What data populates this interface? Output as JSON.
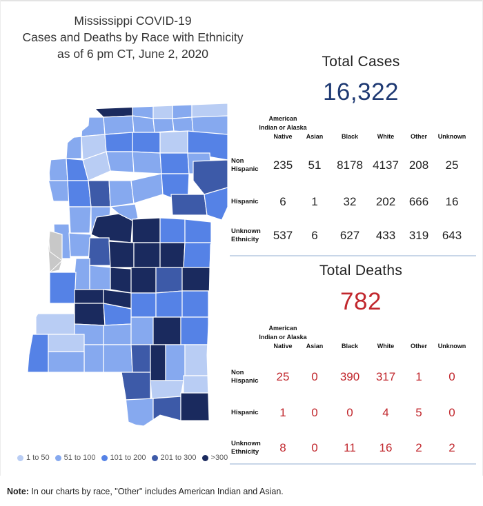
{
  "title_lines": [
    "Mississippi COVID-19",
    "Cases and Deaths by Race with Ethnicity",
    "as of 6 pm CT, June 2, 2020"
  ],
  "colors": {
    "1_50": "#b9cdf4",
    "51_100": "#86a9ef",
    "101_200": "#5582e6",
    "201_300": "#3d5aa8",
    "over_300": "#1a2a5e",
    "no_data": "#c8c8c8",
    "cases_number": "#1f3a73",
    "deaths_number": "#c1272d"
  },
  "legend": [
    {
      "label": "1 to 50",
      "color": "#b9cdf4"
    },
    {
      "label": "51 to 100",
      "color": "#86a9ef"
    },
    {
      "label": "101 to 200",
      "color": "#5582e6"
    },
    {
      "label": "201 to 300",
      "color": "#3d5aa8"
    },
    {
      "label": ">300",
      "color": "#1a2a5e"
    }
  ],
  "cases": {
    "title": "Total Cases",
    "total": "16,322",
    "columns": [
      "American Indian or Alaska Native",
      "Asian",
      "Black",
      "White",
      "Other",
      "Unknown"
    ],
    "rows": [
      {
        "label": "Non Hispanic",
        "values": [
          "235",
          "51",
          "8178",
          "4137",
          "208",
          "25"
        ]
      },
      {
        "label": "Hispanic",
        "values": [
          "6",
          "1",
          "32",
          "202",
          "666",
          "16"
        ]
      },
      {
        "label": "Unknown Ethnicity",
        "values": [
          "537",
          "6",
          "627",
          "433",
          "319",
          "643"
        ]
      }
    ]
  },
  "deaths": {
    "title": "Total Deaths",
    "total": "782",
    "columns": [
      "American Indian or Alaska Native",
      "Asian",
      "Black",
      "White",
      "Other",
      "Unknown"
    ],
    "rows": [
      {
        "label": "Non Hispanic",
        "values": [
          "25",
          "0",
          "390",
          "317",
          "1",
          "0"
        ]
      },
      {
        "label": "Hispanic",
        "values": [
          "1",
          "0",
          "0",
          "4",
          "5",
          "0"
        ]
      },
      {
        "label": "Unknown Ethnicity",
        "values": [
          "8",
          "0",
          "11",
          "16",
          "2",
          "2"
        ]
      }
    ]
  },
  "note": {
    "bold": "Note:",
    "text": " In our charts by race, \"Other\" includes American Indian and Asian."
  },
  "chart_data": [
    {
      "type": "table",
      "title": "Total Cases",
      "total": 16322,
      "columns": [
        "American Indian or Alaska Native",
        "Asian",
        "Black",
        "White",
        "Other",
        "Unknown"
      ],
      "rows": [
        "Non Hispanic",
        "Hispanic",
        "Unknown Ethnicity"
      ],
      "values": [
        [
          235,
          51,
          8178,
          4137,
          208,
          25
        ],
        [
          6,
          1,
          32,
          202,
          666,
          16
        ],
        [
          537,
          6,
          627,
          433,
          319,
          643
        ]
      ]
    },
    {
      "type": "table",
      "title": "Total Deaths",
      "total": 782,
      "columns": [
        "American Indian or Alaska Native",
        "Asian",
        "Black",
        "White",
        "Other",
        "Unknown"
      ],
      "rows": [
        "Non Hispanic",
        "Hispanic",
        "Unknown Ethnicity"
      ],
      "values": [
        [
          25,
          0,
          390,
          317,
          1,
          0
        ],
        [
          1,
          0,
          0,
          4,
          5,
          0
        ],
        [
          8,
          0,
          11,
          16,
          2,
          2
        ]
      ]
    }
  ]
}
